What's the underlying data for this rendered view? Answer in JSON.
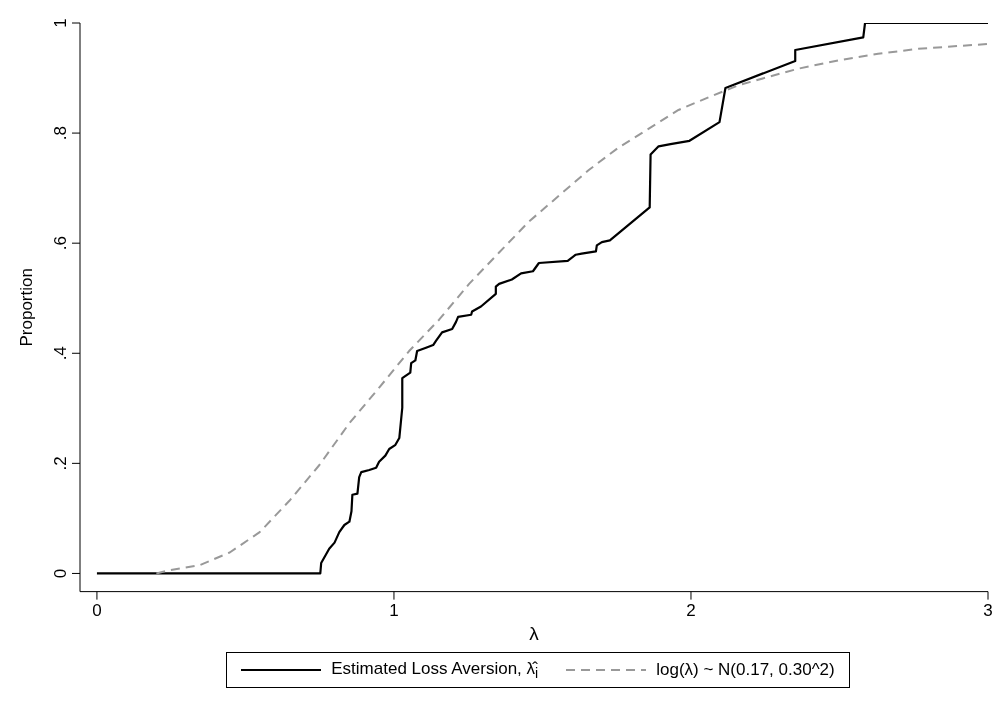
{
  "chart_data": {
    "type": "line",
    "xlabel": "λ",
    "ylabel": "Proportion",
    "xlim": [
      -0.057,
      3
    ],
    "xticks": [
      0,
      1,
      2,
      3
    ],
    "ylim": [
      -0.033,
      1
    ],
    "yticks": [
      0,
      {
        "value": 0.2,
        "label": ".2"
      },
      {
        "value": 0.4,
        "label": ".4"
      },
      {
        "value": 0.6,
        "label": ".6"
      },
      {
        "value": 0.8,
        "label": ".8"
      },
      1
    ],
    "grid": false,
    "legend": "bottom",
    "marker": "none",
    "series": [
      {
        "name": "Estimated Loss Aversion, λ̂$_{i}$",
        "color": "#000000",
        "line_style": "solid",
        "x": [
          0,
          0.752,
          0.755,
          0.782,
          0.8,
          0.816,
          0.833,
          0.85,
          0.857,
          0.86,
          0.877,
          0.883,
          0.89,
          0.917,
          0.94,
          0.95,
          0.971,
          0.984,
          1.004,
          1.018,
          1.028,
          1.028,
          1.055,
          1.058,
          1.072,
          1.078,
          1.108,
          1.132,
          1.142,
          1.162,
          1.196,
          1.209,
          1.216,
          1.26,
          1.263,
          1.293,
          1.343,
          1.343,
          1.354,
          1.397,
          1.428,
          1.468,
          1.488,
          1.585,
          1.612,
          1.632,
          1.68,
          1.683,
          1.7,
          1.727,
          1.861,
          1.864,
          1.891,
          1.931,
          1.995,
          2.096,
          2.116,
          2.351,
          2.351,
          2.58,
          2.586,
          3
        ],
        "values": [
          0,
          0,
          0.019,
          0.045,
          0.056,
          0.075,
          0.088,
          0.094,
          0.113,
          0.143,
          0.145,
          0.175,
          0.184,
          0.188,
          0.192,
          0.203,
          0.214,
          0.226,
          0.233,
          0.246,
          0.301,
          0.355,
          0.365,
          0.382,
          0.387,
          0.404,
          0.41,
          0.415,
          0.423,
          0.438,
          0.444,
          0.457,
          0.466,
          0.47,
          0.476,
          0.485,
          0.508,
          0.521,
          0.526,
          0.534,
          0.545,
          0.549,
          0.564,
          0.568,
          0.579,
          0.581,
          0.585,
          0.596,
          0.602,
          0.605,
          0.665,
          0.761,
          0.776,
          0.78,
          0.786,
          0.82,
          0.882,
          0.931,
          0.951,
          0.974,
          1,
          1
        ]
      },
      {
        "name": "log(λ) ~ N(0.17, 0.30^2)",
        "color": "#999999",
        "line_style": "dashed",
        "x": [
          0.2,
          0.245,
          0.346,
          0.447,
          0.548,
          0.648,
          0.749,
          0.85,
          0.951,
          1.051,
          1.152,
          1.253,
          1.354,
          1.454,
          1.555,
          1.656,
          1.757,
          1.858,
          1.958,
          2.059,
          2.16,
          2.26,
          2.361,
          2.496,
          2.63,
          2.765,
          3
        ],
        "values": [
          0,
          0.006,
          0.015,
          0.038,
          0.075,
          0.132,
          0.197,
          0.273,
          0.338,
          0.404,
          0.461,
          0.526,
          0.583,
          0.639,
          0.686,
          0.733,
          0.774,
          0.808,
          0.842,
          0.865,
          0.887,
          0.902,
          0.917,
          0.932,
          0.944,
          0.953,
          0.962
        ]
      }
    ]
  }
}
